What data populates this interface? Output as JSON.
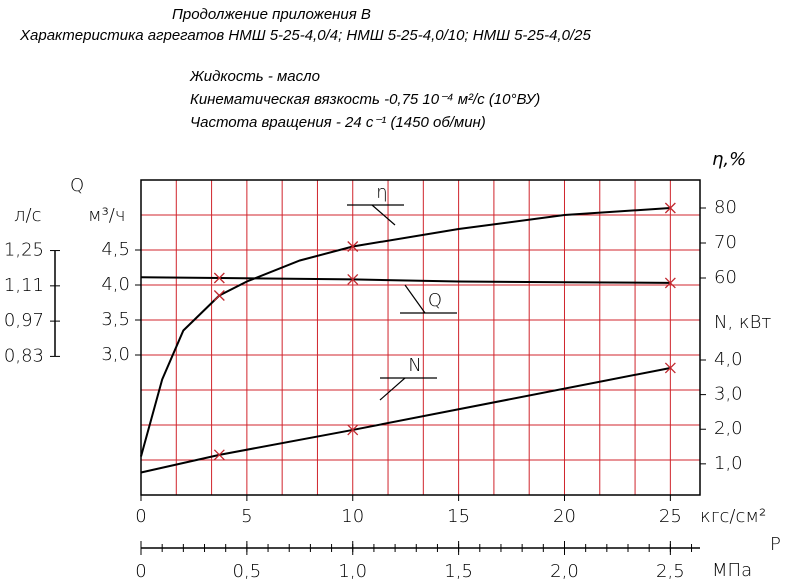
{
  "chart_data": {
    "type": "line",
    "title": "Продолжение приложения В",
    "subtitle": "Характеристика агрегатов НМШ 5-25-4,0/4; НМШ 5-25-4,0/10; НМШ 5-25-4,0/25",
    "notes": [
      "Жидкость - масло",
      "Кинематическая вязкость -0,75 10⁻⁴ м²/с (10°ВУ)",
      "Частота вращения - 24 с⁻¹ (1450 об/мин)"
    ],
    "xlabel": "P",
    "xunits": "кгс/см²",
    "x2units": "МПа",
    "xlim": [
      0,
      26.4
    ],
    "xticks": [
      0,
      5,
      10,
      15,
      20,
      25
    ],
    "x2lim": [
      0,
      2.64
    ],
    "x2ticks": [
      0,
      {
        "value": 0.5,
        "label": "0,5"
      },
      {
        "value": 1.0,
        "label": "1,0"
      },
      {
        "value": 1.5,
        "label": "1,5"
      },
      {
        "value": 2.0,
        "label": "2,0"
      },
      {
        "value": 2.5,
        "label": "2,5"
      }
    ],
    "ylabel": "Q",
    "yunits": "м³/ч",
    "yunits_ls": "л/с",
    "ylim": [
      1.0,
      5.5
    ],
    "yticks": [
      {
        "value": 3.0,
        "label": "3,0"
      },
      {
        "value": 3.5,
        "label": "3,5"
      },
      {
        "value": 4.0,
        "label": "4,0"
      },
      {
        "value": 4.5,
        "label": "4,5"
      }
    ],
    "ylim_ls": [
      0.28,
      1.53
    ],
    "yticks_ls": [
      {
        "value": 0.83,
        "label": "0,83"
      },
      {
        "value": 0.97,
        "label": "0,97"
      },
      {
        "value": 1.11,
        "label": "1,11"
      },
      {
        "value": 1.25,
        "label": "1,25"
      }
    ],
    "y2label": "η,%",
    "y2lim": [
      -2,
      88
    ],
    "y2ticks": [
      60,
      70,
      80
    ],
    "y3label": "N, кВт",
    "y3lim": [
      0.1,
      9.2
    ],
    "y3ticks": [
      {
        "value": 1.0,
        "label": "1,0"
      },
      {
        "value": 2.0,
        "label": "2,0"
      },
      {
        "value": 3.0,
        "label": "3,0"
      },
      {
        "value": 4.0,
        "label": "4,0"
      }
    ],
    "grid": true,
    "grid_color": "#d0242c",
    "series": [
      {
        "name": "η",
        "axis": "y2",
        "color": "#000000",
        "x": [
          0,
          1,
          2,
          3.7,
          5,
          7.5,
          10,
          15,
          20,
          25
        ],
        "values": [
          9,
          31,
          45,
          55,
          59,
          65,
          69,
          74,
          78,
          80
        ],
        "markers": [
          false,
          false,
          false,
          true,
          false,
          false,
          true,
          false,
          false,
          true
        ]
      },
      {
        "name": "Q",
        "axis": "y",
        "color": "#000000",
        "x": [
          0,
          3.7,
          10,
          15,
          20,
          25
        ],
        "values": [
          4.11,
          4.1,
          4.08,
          4.05,
          4.04,
          4.03
        ],
        "markers": [
          false,
          true,
          true,
          false,
          false,
          true
        ]
      },
      {
        "name": "N",
        "axis": "y3",
        "color": "#000000",
        "x": [
          0,
          3.7,
          10,
          25
        ],
        "values": [
          0.75,
          1.26,
          1.98,
          3.77
        ],
        "markers": [
          false,
          true,
          true,
          true
        ]
      }
    ]
  }
}
